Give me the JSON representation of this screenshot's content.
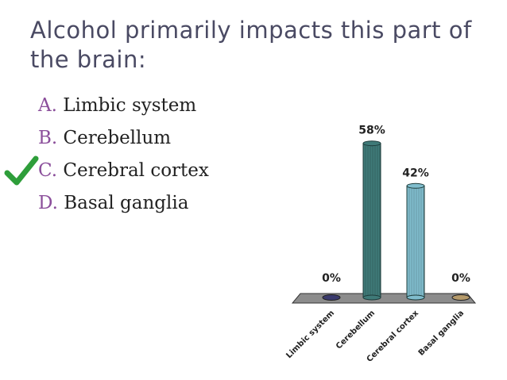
{
  "slide": {
    "title_line1": "Alcohol primarily impacts this part of",
    "title_line2": "the brain:",
    "answers": [
      {
        "letter": "A.",
        "text": "Limbic system"
      },
      {
        "letter": "B.",
        "text": "Cerebellum"
      },
      {
        "letter": "C.",
        "text": "Cerebral cortex",
        "correct": true
      },
      {
        "letter": "D.",
        "text": "Basal ganglia"
      }
    ],
    "correct_icon": "checkmark-icon",
    "colors": {
      "title": "#4a4a63",
      "letter": "#8b4f9b",
      "check": "#2e9e3a"
    }
  },
  "chart_data": {
    "type": "bar",
    "categories": [
      "Limbic system",
      "Cerebellum",
      "Cerebral cortex",
      "Basal ganglia"
    ],
    "values": [
      0,
      58,
      42,
      0
    ],
    "data_labels": [
      "0%",
      "58%",
      "42%",
      "0%"
    ],
    "colors": [
      "#3b3b6e",
      "#3f7a78",
      "#7fbccc",
      "#b59a6a"
    ],
    "ylim": [
      0,
      100
    ],
    "grid": false,
    "legend": "none"
  }
}
